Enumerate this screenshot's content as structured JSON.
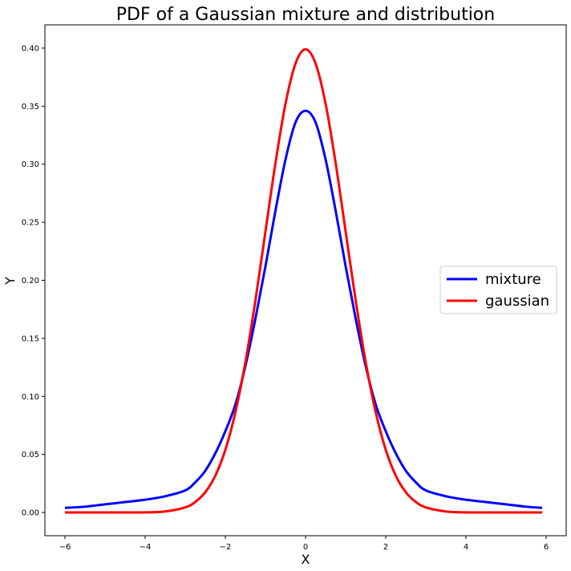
{
  "chart_data": {
    "type": "line",
    "title": "PDF of a Gaussian mixture and distribution",
    "xlabel": "X",
    "ylabel": "Y",
    "xlim": [
      -6.5,
      6.5
    ],
    "ylim": [
      -0.02,
      0.42
    ],
    "x_ticks": [
      -6,
      -4,
      -2,
      0,
      2,
      4,
      6
    ],
    "x_tick_labels": [
      "−6",
      "−4",
      "−2",
      "0",
      "2",
      "4",
      "6"
    ],
    "y_ticks": [
      0.0,
      0.05,
      0.1,
      0.15,
      0.2,
      0.25,
      0.3,
      0.35,
      0.4
    ],
    "y_tick_labels": [
      "0.00",
      "0.05",
      "0.10",
      "0.15",
      "0.20",
      "0.25",
      "0.30",
      "0.35",
      "0.40"
    ],
    "grid": false,
    "legend_position": "center-right",
    "series": [
      {
        "name": "mixture",
        "color": "#0000ff",
        "points": [
          [
            -6,
            0.004
          ],
          [
            -5.5,
            0.005
          ],
          [
            -5,
            0.007
          ],
          [
            -4.5,
            0.009
          ],
          [
            -4,
            0.011
          ],
          [
            -3.5,
            0.014
          ],
          [
            -3,
            0.019
          ],
          [
            -2.75,
            0.026
          ],
          [
            -2.5,
            0.036
          ],
          [
            -2.25,
            0.051
          ],
          [
            -2,
            0.07
          ],
          [
            -1.75,
            0.093
          ],
          [
            -1.5,
            0.126
          ],
          [
            -1.25,
            0.167
          ],
          [
            -1,
            0.212
          ],
          [
            -0.75,
            0.26
          ],
          [
            -0.5,
            0.304
          ],
          [
            -0.25,
            0.336
          ],
          [
            0,
            0.346
          ],
          [
            0.25,
            0.336
          ],
          [
            0.5,
            0.304
          ],
          [
            0.75,
            0.26
          ],
          [
            1,
            0.212
          ],
          [
            1.25,
            0.167
          ],
          [
            1.5,
            0.126
          ],
          [
            1.75,
            0.093
          ],
          [
            2,
            0.07
          ],
          [
            2.25,
            0.051
          ],
          [
            2.5,
            0.036
          ],
          [
            2.75,
            0.026
          ],
          [
            3,
            0.019
          ],
          [
            3.5,
            0.014
          ],
          [
            4,
            0.011
          ],
          [
            4.5,
            0.009
          ],
          [
            5,
            0.007
          ],
          [
            5.5,
            0.005
          ],
          [
            5.9,
            0.004
          ]
        ]
      },
      {
        "name": "gaussian",
        "color": "#ff0000",
        "points": [
          [
            -6,
            0.0
          ],
          [
            -5,
            0.0
          ],
          [
            -4,
            0.0001
          ],
          [
            -3.5,
            0.0009
          ],
          [
            -3,
            0.0044
          ],
          [
            -2.75,
            0.0091
          ],
          [
            -2.5,
            0.0175
          ],
          [
            -2.25,
            0.0317
          ],
          [
            -2,
            0.054
          ],
          [
            -1.75,
            0.0863
          ],
          [
            -1.5,
            0.1295
          ],
          [
            -1.25,
            0.1826
          ],
          [
            -1,
            0.242
          ],
          [
            -0.75,
            0.3011
          ],
          [
            -0.5,
            0.3521
          ],
          [
            -0.25,
            0.3867
          ],
          [
            0,
            0.3989
          ],
          [
            0.25,
            0.3867
          ],
          [
            0.5,
            0.3521
          ],
          [
            0.75,
            0.3011
          ],
          [
            1,
            0.242
          ],
          [
            1.25,
            0.1826
          ],
          [
            1.5,
            0.1295
          ],
          [
            1.75,
            0.0863
          ],
          [
            2,
            0.054
          ],
          [
            2.25,
            0.0317
          ],
          [
            2.5,
            0.0175
          ],
          [
            2.75,
            0.0091
          ],
          [
            3,
            0.0044
          ],
          [
            3.5,
            0.0009
          ],
          [
            4,
            0.0001
          ],
          [
            5,
            0.0
          ],
          [
            5.9,
            0.0
          ]
        ]
      }
    ]
  }
}
